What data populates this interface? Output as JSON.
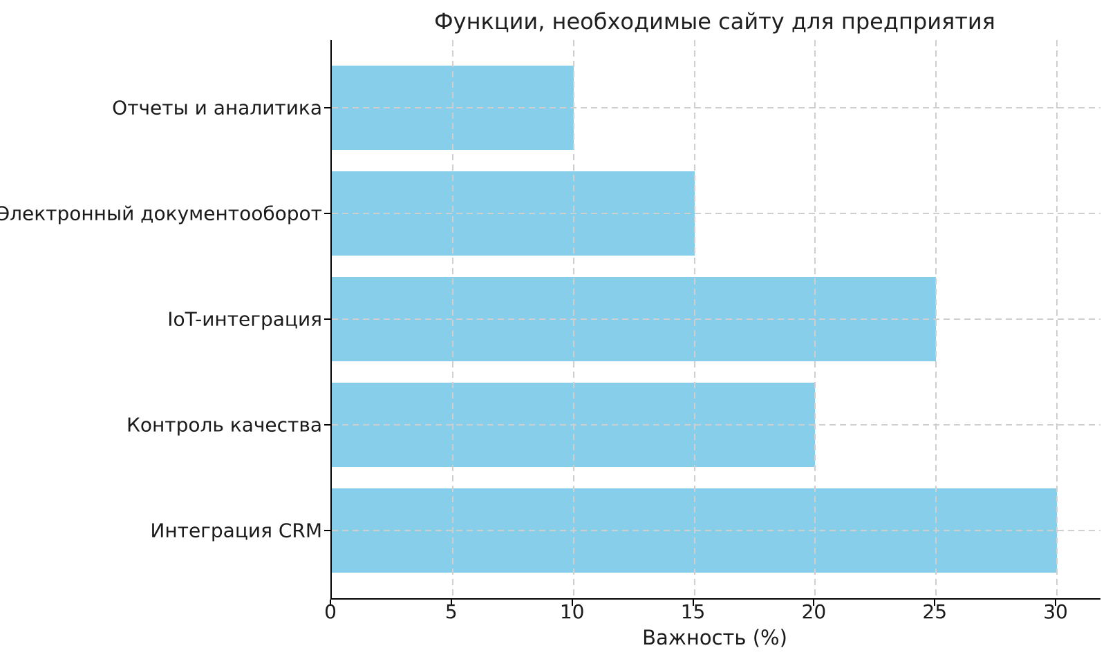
{
  "chart_data": {
    "type": "bar",
    "orientation": "horizontal",
    "title": "Функции, необходимые сайту для предприятия",
    "xlabel": "Важность (%)",
    "ylabel": "",
    "categories": [
      "Отчеты и аналитика",
      "Электронный документооборот",
      "IoT-интеграция",
      "Контроль качества",
      "Интеграция CRM"
    ],
    "values": [
      10,
      15,
      25,
      20,
      30
    ],
    "xticks": [
      0,
      5,
      10,
      15,
      20,
      25,
      30
    ],
    "xlim": [
      0,
      31.8
    ],
    "bar_fraction": 0.8,
    "grid": true,
    "grid_style": "dashed",
    "legend": "none",
    "colors": {
      "bar": "#87CEEB",
      "grid": "#cfcfcf",
      "spine": "#000000",
      "text": "#1a1a1a"
    }
  }
}
